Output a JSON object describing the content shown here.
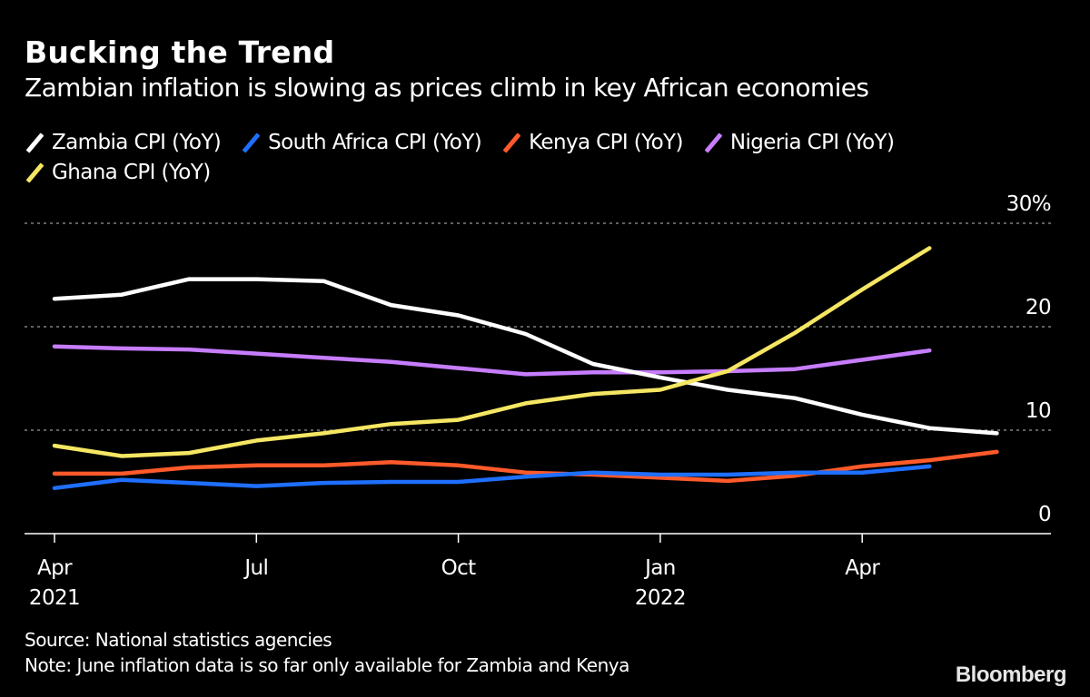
{
  "header": {
    "title": "Bucking the Trend",
    "subtitle": "Zambian inflation is slowing as prices climb in key African economies"
  },
  "footer": {
    "source": "Source: National statistics agencies",
    "note": "Note: June inflation data is so far only available for Zambia and Kenya",
    "logo": "Bloomberg"
  },
  "chart_data": {
    "type": "line",
    "title": "Bucking the Trend",
    "subtitle": "Zambian inflation is slowing as prices climb in key African economies",
    "xlabel": "",
    "ylabel": "",
    "x": [
      "2021-04",
      "2021-05",
      "2021-06",
      "2021-07",
      "2021-08",
      "2021-09",
      "2021-10",
      "2021-11",
      "2021-12",
      "2022-01",
      "2022-02",
      "2022-03",
      "2022-04",
      "2022-05",
      "2022-06"
    ],
    "x_ticks": [
      {
        "month": "2021-04",
        "label": "Apr",
        "sublabel": "2021"
      },
      {
        "month": "2021-07",
        "label": "Jul",
        "sublabel": ""
      },
      {
        "month": "2021-10",
        "label": "Oct",
        "sublabel": ""
      },
      {
        "month": "2022-01",
        "label": "Jan",
        "sublabel": "2022"
      },
      {
        "month": "2022-04",
        "label": "Apr",
        "sublabel": ""
      }
    ],
    "y_ticks": [
      {
        "value": 0,
        "label": "0"
      },
      {
        "value": 10,
        "label": "10"
      },
      {
        "value": 20,
        "label": "20"
      },
      {
        "value": 30,
        "label": "30%"
      }
    ],
    "ylim": [
      0,
      30
    ],
    "grid": true,
    "legend_position": "top-left",
    "series": [
      {
        "name": "Zambia CPI (YoY)",
        "color": "#ffffff",
        "values": [
          22.7,
          23.1,
          24.6,
          24.6,
          24.4,
          22.1,
          21.1,
          19.3,
          16.4,
          15.1,
          13.9,
          13.1,
          11.5,
          10.2,
          9.7
        ]
      },
      {
        "name": "South Africa CPI (YoY)",
        "color": "#1f6fff",
        "values": [
          4.4,
          5.2,
          4.9,
          4.6,
          4.9,
          5.0,
          5.0,
          5.5,
          5.9,
          5.7,
          5.7,
          5.9,
          5.9,
          6.5,
          null
        ]
      },
      {
        "name": "Kenya CPI (YoY)",
        "color": "#ff5a2a",
        "values": [
          5.8,
          5.8,
          6.4,
          6.6,
          6.6,
          6.9,
          6.6,
          5.9,
          5.7,
          5.4,
          5.1,
          5.6,
          6.5,
          7.1,
          7.9
        ]
      },
      {
        "name": "Nigeria CPI (YoY)",
        "color": "#c77dff",
        "values": [
          18.1,
          17.9,
          17.8,
          17.4,
          17.0,
          16.6,
          16.0,
          15.4,
          15.6,
          15.6,
          15.7,
          15.9,
          16.8,
          17.7,
          null
        ]
      },
      {
        "name": "Ghana CPI (YoY)",
        "color": "#f5e663",
        "values": [
          8.5,
          7.5,
          7.8,
          9.0,
          9.7,
          10.6,
          11.0,
          12.6,
          13.5,
          13.9,
          15.7,
          19.4,
          23.6,
          27.6,
          null
        ]
      }
    ],
    "draw_order": [
      3,
      0,
      4,
      2,
      1
    ]
  }
}
